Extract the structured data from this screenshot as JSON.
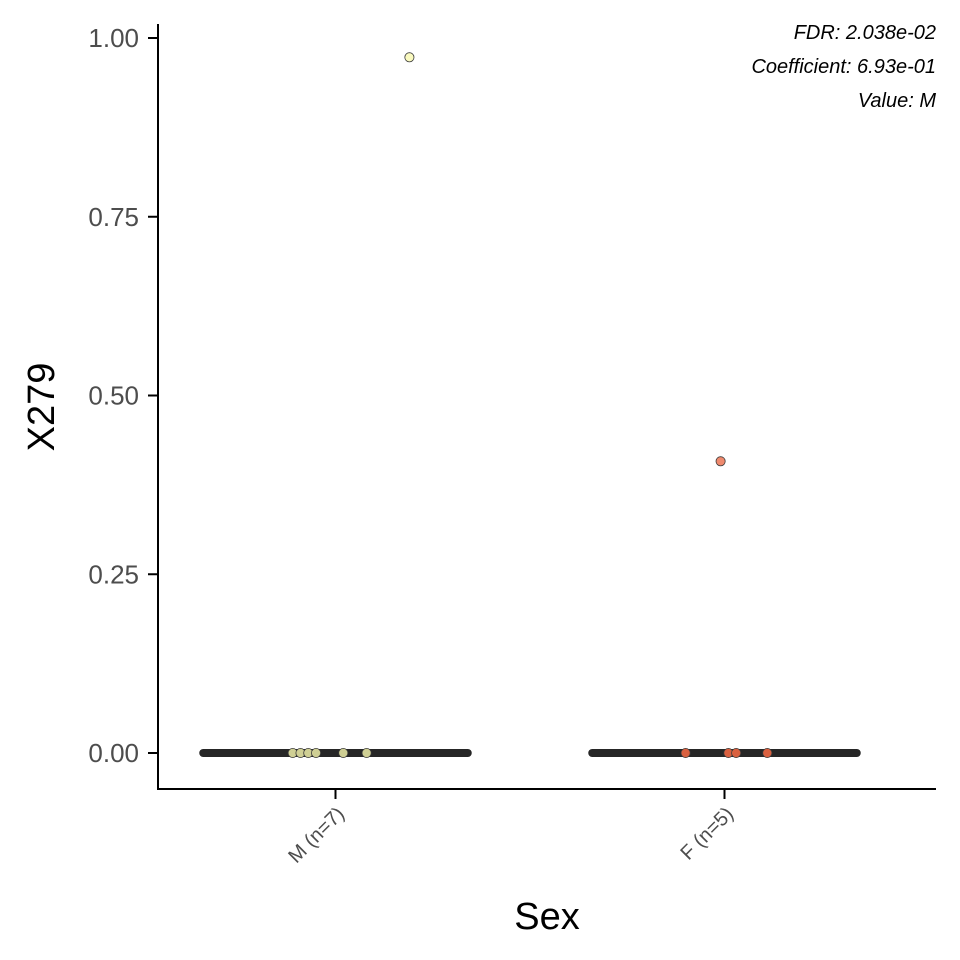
{
  "chart_data": {
    "type": "scatter",
    "xlabel": "Sex",
    "ylabel": "X279",
    "categories": [
      "M (n=7)",
      "F (n=5)"
    ],
    "ylim": [
      -0.05,
      1.02
    ],
    "yticks": [
      0.0,
      0.25,
      0.5,
      0.75,
      1.0
    ],
    "ytick_labels": [
      "0.00",
      "0.25",
      "0.50",
      "0.75",
      "1.00"
    ],
    "annotations": [
      "FDR: 2.038e-02",
      "Coefficient: 6.93e-01",
      "Value: M"
    ],
    "annotation_position": "top-right",
    "grid": false,
    "legend": "none",
    "median_bar_color": "#262626",
    "point_outline": "#3a3a3a",
    "series": [
      {
        "category": "M (n=7)",
        "color": "#cfcf94",
        "outlier_color": "#fafac0",
        "median": 0.0,
        "values": [
          0.0,
          0.0,
          0.0,
          0.0,
          0.0,
          0.0,
          0.973
        ],
        "jitter": [
          -0.11,
          -0.09,
          -0.07,
          -0.05,
          0.02,
          0.08,
          0.19
        ]
      },
      {
        "category": "F (n=5)",
        "color": "#d9603f",
        "outlier_color": "#ef8a6e",
        "median": 0.0,
        "values": [
          0.0,
          0.0,
          0.0,
          0.0,
          0.408
        ],
        "jitter": [
          -0.1,
          0.01,
          0.03,
          0.11,
          -0.01
        ]
      }
    ]
  }
}
